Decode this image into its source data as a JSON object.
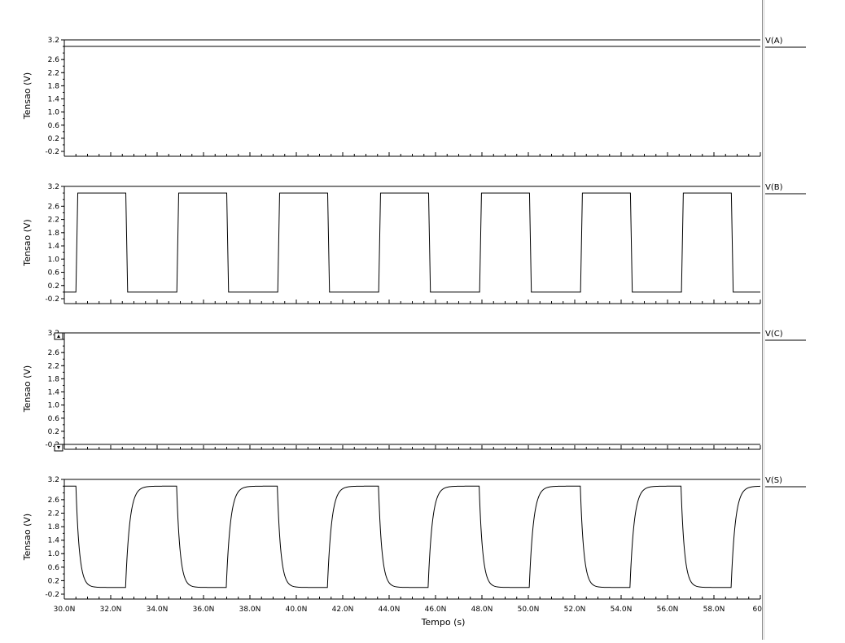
{
  "chart_data": [
    {
      "type": "line",
      "legend": "V(A)",
      "ylabel": "Tensao (V)",
      "ylim": [
        -0.2,
        3.2
      ],
      "yticks": [
        "3.2",
        "2.6",
        "2.2",
        "1.8",
        "1.4",
        "1.0",
        "0.6",
        "0.2",
        "-0.2"
      ],
      "xlim": [
        30,
        60
      ],
      "series": [
        {
          "name": "V(A)",
          "x": [
            30,
            60
          ],
          "y": [
            3.0,
            3.0
          ]
        }
      ]
    },
    {
      "type": "line",
      "legend": "V(B)",
      "ylabel": "Tensao (V)",
      "ylim": [
        -0.2,
        3.2
      ],
      "yticks": [
        "3.2",
        "2.6",
        "2.2",
        "1.8",
        "1.4",
        "1.0",
        "0.6",
        "0.2",
        "-0.2"
      ],
      "xlim": [
        30,
        60
      ],
      "series": [
        {
          "name": "V(B)",
          "square_wave": {
            "high": 3.0,
            "low": 0.0,
            "period_ns": 4.35,
            "first_rise_ns": 30.5,
            "high_ns": 2.15
          }
        }
      ]
    },
    {
      "type": "line",
      "legend": "V(C)",
      "ylabel": "Tensao (V)",
      "ylim": [
        -0.2,
        3.2
      ],
      "yticks": [
        "3.2",
        "2.6",
        "2.2",
        "1.8",
        "1.4",
        "1.0",
        "0.6",
        "0.2",
        "-0.2"
      ],
      "xlim": [
        30,
        60
      ],
      "series": [
        {
          "name": "V(C)",
          "x": [
            30,
            60
          ],
          "y": [
            -0.2,
            -0.2
          ]
        }
      ]
    },
    {
      "type": "line",
      "legend": "V(S)",
      "ylabel": "Tensao (V)",
      "ylim": [
        -0.2,
        3.2
      ],
      "yticks": [
        "3.2",
        "2.6",
        "2.2",
        "1.8",
        "1.4",
        "1.0",
        "0.6",
        "0.2",
        "-0.2"
      ],
      "xlim": [
        30,
        60
      ],
      "xlabel": "Tempo (s)",
      "xticks": [
        "30.0N",
        "32.0N",
        "34.0N",
        "36.0N",
        "38.0N",
        "40.0N",
        "42.0N",
        "44.0N",
        "46.0N",
        "48.0N",
        "50.0N",
        "52.0N",
        "54.0N",
        "56.0N",
        "58.0N",
        "60"
      ],
      "series": [
        {
          "name": "V(S)",
          "inverted_rc_wave": {
            "high": 3.0,
            "low": 0.0,
            "period_ns": 4.35,
            "first_fall_ns": 30.5,
            "low_ns": 2.15
          }
        }
      ]
    }
  ]
}
